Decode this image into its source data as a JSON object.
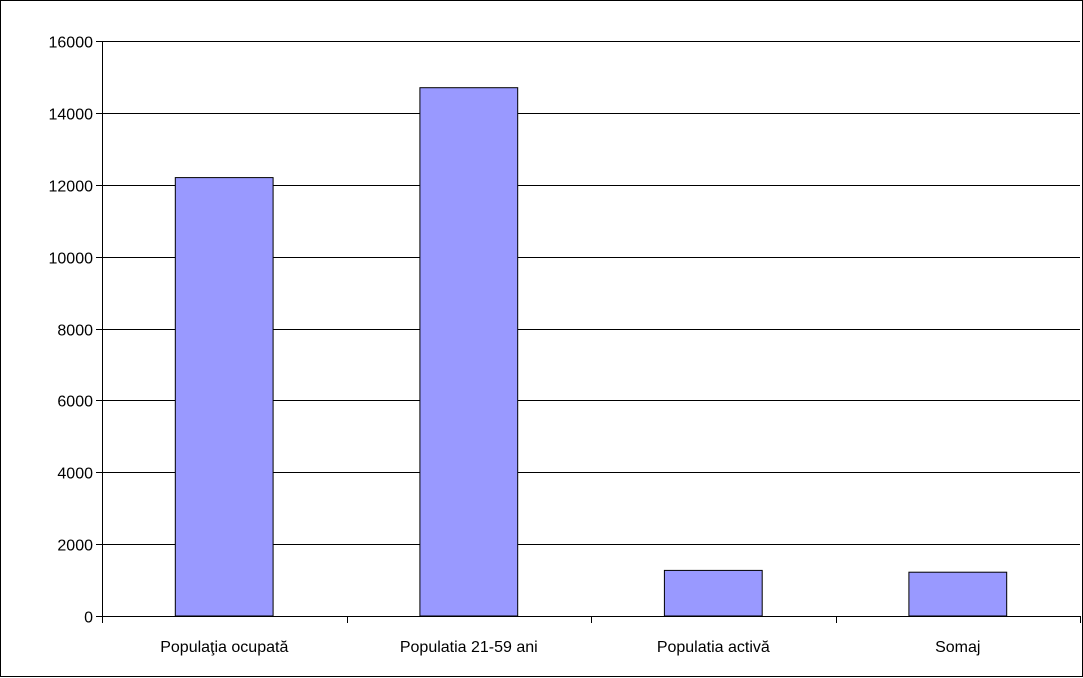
{
  "chart_data": {
    "type": "bar",
    "categories": [
      "Populaţia ocupată",
      "Populatia 21-59 ani",
      "Populatia activă",
      "Somaj"
    ],
    "values": [
      12200,
      14700,
      1270,
      1220
    ],
    "ylim": [
      0,
      16000
    ],
    "yticks": [
      0,
      2000,
      4000,
      6000,
      8000,
      10000,
      12000,
      14000,
      16000
    ],
    "grid": true,
    "legend": "none"
  },
  "colors": {
    "bar_fill": "#9999ff",
    "bar_stroke": "#000000",
    "grid": "#000000",
    "background": "#ffffff"
  }
}
